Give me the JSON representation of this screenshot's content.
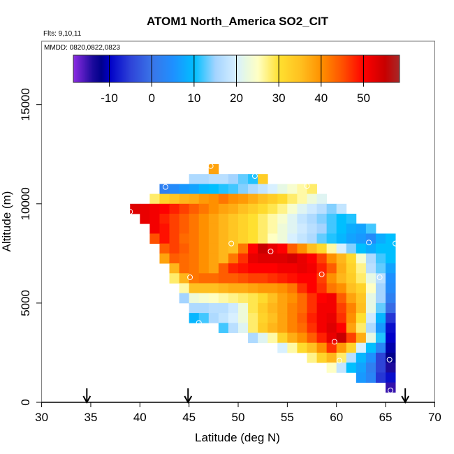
{
  "chart_data": {
    "type": "heatmap",
    "title": "ATOM1 North_America SO2_CIT",
    "subtitle_flights": "Flts: 9,10,11",
    "subtitle_dates": "MMDD: 0820,0822,0823",
    "xlabel": "Latitude (deg N)",
    "ylabel": "Altitude (m)",
    "xlim": [
      30,
      70
    ],
    "ylim": [
      0,
      18200
    ],
    "xticks": [
      "30",
      "35",
      "40",
      "45",
      "50",
      "55",
      "60",
      "65",
      "70"
    ],
    "yticks": [
      "0",
      "5000",
      "10000",
      "15000"
    ],
    "cell_lat_width": 1,
    "cell_alt_height": 500,
    "colorbar": {
      "range": [
        -18.5,
        58.5
      ],
      "ticks": [
        "-10",
        "0",
        "10",
        "20",
        "30",
        "40",
        "50"
      ],
      "stops": [
        [
          -18.5,
          "#8a2be2"
        ],
        [
          -14,
          "#1c0a9c"
        ],
        [
          -12,
          "#00008b"
        ],
        [
          -10,
          "#0000c8"
        ],
        [
          -5,
          "#2e44d8"
        ],
        [
          0,
          "#3a75e8"
        ],
        [
          5,
          "#1e90ff"
        ],
        [
          10,
          "#00bfff"
        ],
        [
          15,
          "#a4d4ff"
        ],
        [
          20,
          "#d8f0ff"
        ],
        [
          22,
          "#e6f8e4"
        ],
        [
          25,
          "#ffffc4"
        ],
        [
          30,
          "#ffe030"
        ],
        [
          35,
          "#ffc020"
        ],
        [
          40,
          "#ff9000"
        ],
        [
          45,
          "#ff5000"
        ],
        [
          50,
          "#ff0000"
        ],
        [
          55,
          "#c80000"
        ],
        [
          58.5,
          "#a52a2a"
        ]
      ]
    },
    "rows": [
      {
        "alt": 11500,
        "lat0": 47,
        "values": [
          38
        ]
      },
      {
        "alt": 11000,
        "lat0": 45,
        "values": [
          16,
          16,
          17,
          17,
          15,
          13,
          11,
          33
        ]
      },
      {
        "alt": 10500,
        "lat0": 42,
        "values": [
          2,
          4,
          6,
          7,
          9,
          10,
          11,
          12,
          14,
          16,
          18,
          20,
          22,
          24,
          26,
          28
        ]
      },
      {
        "alt": 10000,
        "lat0": 41,
        "values": [
          28,
          32,
          34,
          36,
          37,
          39,
          40,
          42,
          40,
          39,
          37,
          35,
          33,
          31,
          28,
          26,
          23,
          21
        ]
      },
      {
        "alt": 9500,
        "lat0": 39,
        "values": [
          53,
          52,
          51,
          50,
          48,
          46,
          44,
          42,
          40,
          38,
          37,
          35,
          33,
          31,
          29,
          27,
          24,
          21,
          19,
          17,
          14,
          18
        ]
      },
      {
        "alt": 9000,
        "lat0": 40,
        "values": [
          52,
          51,
          48,
          46,
          44,
          42,
          40,
          38,
          36,
          34,
          32,
          30,
          28,
          26,
          24,
          21,
          18,
          16,
          14,
          12,
          10,
          11
        ]
      },
      {
        "alt": 8500,
        "lat0": 41,
        "values": [
          51,
          49,
          46,
          44,
          42,
          40,
          38,
          36,
          34,
          32,
          30,
          28,
          26,
          23,
          21,
          19,
          17,
          15,
          12,
          10,
          8,
          7,
          12
        ]
      },
      {
        "alt": 8000,
        "lat0": 41,
        "values": [
          45,
          49,
          46,
          43,
          42,
          40,
          38,
          36,
          34,
          32,
          30,
          28,
          25,
          23,
          20,
          18,
          16,
          13,
          11,
          9,
          7,
          6,
          4,
          8,
          10
        ]
      },
      {
        "alt": 7500,
        "lat0": 42,
        "values": [
          44,
          46,
          44,
          42,
          40,
          38,
          36,
          35,
          42,
          50,
          55,
          52,
          50,
          44,
          40,
          35,
          31,
          26,
          20,
          14,
          10,
          8,
          10,
          10
        ]
      },
      {
        "alt": 7000,
        "lat0": 42,
        "values": [
          38,
          44,
          43,
          42,
          40,
          38,
          36,
          42,
          47,
          52,
          53,
          53,
          53,
          54,
          52,
          50,
          46,
          40,
          36,
          31,
          24,
          16,
          12,
          10
        ]
      },
      {
        "alt": 6500,
        "lat0": 43,
        "values": [
          36,
          43,
          42,
          40,
          38,
          44,
          48,
          49,
          50,
          50,
          50,
          51,
          51,
          52,
          51,
          48,
          44,
          37,
          32,
          27,
          17,
          13,
          7
        ]
      },
      {
        "alt": 6000,
        "lat0": 43,
        "values": [
          28,
          36,
          42,
          43,
          43,
          44,
          44,
          45,
          46,
          46,
          47,
          48,
          49,
          50,
          50,
          46,
          40,
          36,
          33,
          28,
          22,
          17,
          5
        ]
      },
      {
        "alt": 5500,
        "lat0": 44,
        "values": [
          26,
          35,
          35,
          35,
          36,
          37,
          37,
          38,
          39,
          39,
          40,
          42,
          47,
          50,
          47,
          42,
          40,
          35,
          32,
          25,
          15,
          4
        ]
      },
      {
        "alt": 5000,
        "lat0": 44,
        "values": [
          15,
          23,
          24,
          25,
          26,
          27,
          28,
          29,
          31,
          35,
          38,
          40,
          43,
          47,
          50,
          51,
          44,
          38,
          34,
          22,
          15,
          2
        ]
      },
      {
        "alt": 4500,
        "lat0": 45,
        "values": [
          16,
          16,
          17,
          17,
          19,
          23,
          29,
          33,
          36,
          38,
          41,
          43,
          47,
          51,
          51,
          46,
          41,
          35,
          22,
          13,
          -1
        ]
      },
      {
        "alt": 4000,
        "lat0": 45,
        "values": [
          9,
          12,
          16,
          18,
          20,
          23,
          28,
          32,
          35,
          38,
          41,
          44,
          48,
          51,
          52,
          47,
          40,
          30,
          19,
          9,
          -6
        ]
      },
      {
        "alt": 3500,
        "lat0": 48,
        "values": [
          12,
          17,
          21,
          28,
          33,
          36,
          38,
          41,
          43,
          47,
          51,
          53,
          50,
          38,
          28,
          16,
          6,
          -9
        ]
      },
      {
        "alt": 3000,
        "lat0": 51,
        "values": [
          16,
          21,
          26,
          32,
          37,
          40,
          44,
          48,
          52,
          55,
          46,
          37,
          22,
          11,
          -10
        ]
      },
      {
        "alt": 2500,
        "lat0": 54,
        "values": [
          20,
          26,
          31,
          35,
          40,
          47,
          39,
          32,
          20,
          10,
          3,
          -11
        ]
      },
      {
        "alt": 2000,
        "lat0": 57,
        "values": [
          27,
          32,
          36,
          28,
          17,
          9,
          5,
          -5,
          -12
        ]
      },
      {
        "alt": 1500,
        "lat0": 59,
        "values": [
          25,
          18,
          10,
          7,
          2,
          -5,
          -14
        ]
      },
      {
        "alt": 1000,
        "lat0": 62,
        "values": [
          6,
          3,
          -6,
          -9
        ]
      },
      {
        "alt": 500,
        "lat0": 65,
        "values": [
          -15
        ]
      }
    ],
    "observations": [
      [
        47.2,
        11900
      ],
      [
        51.7,
        11400
      ],
      [
        42.6,
        10850
      ],
      [
        57,
        10900
      ],
      [
        39,
        9600
      ],
      [
        63.3,
        8050
      ],
      [
        66,
        8000
      ],
      [
        53.3,
        7600
      ],
      [
        49.3,
        8000
      ],
      [
        45.1,
        6300
      ],
      [
        58.5,
        6450
      ],
      [
        64.4,
        6300
      ],
      [
        46,
        4000
      ],
      [
        59.8,
        3050
      ],
      [
        65.4,
        2150
      ],
      [
        60.3,
        2100
      ],
      [
        65.5,
        600
      ]
    ],
    "arrows_lat": [
      34.6,
      44.9,
      67.0
    ]
  }
}
